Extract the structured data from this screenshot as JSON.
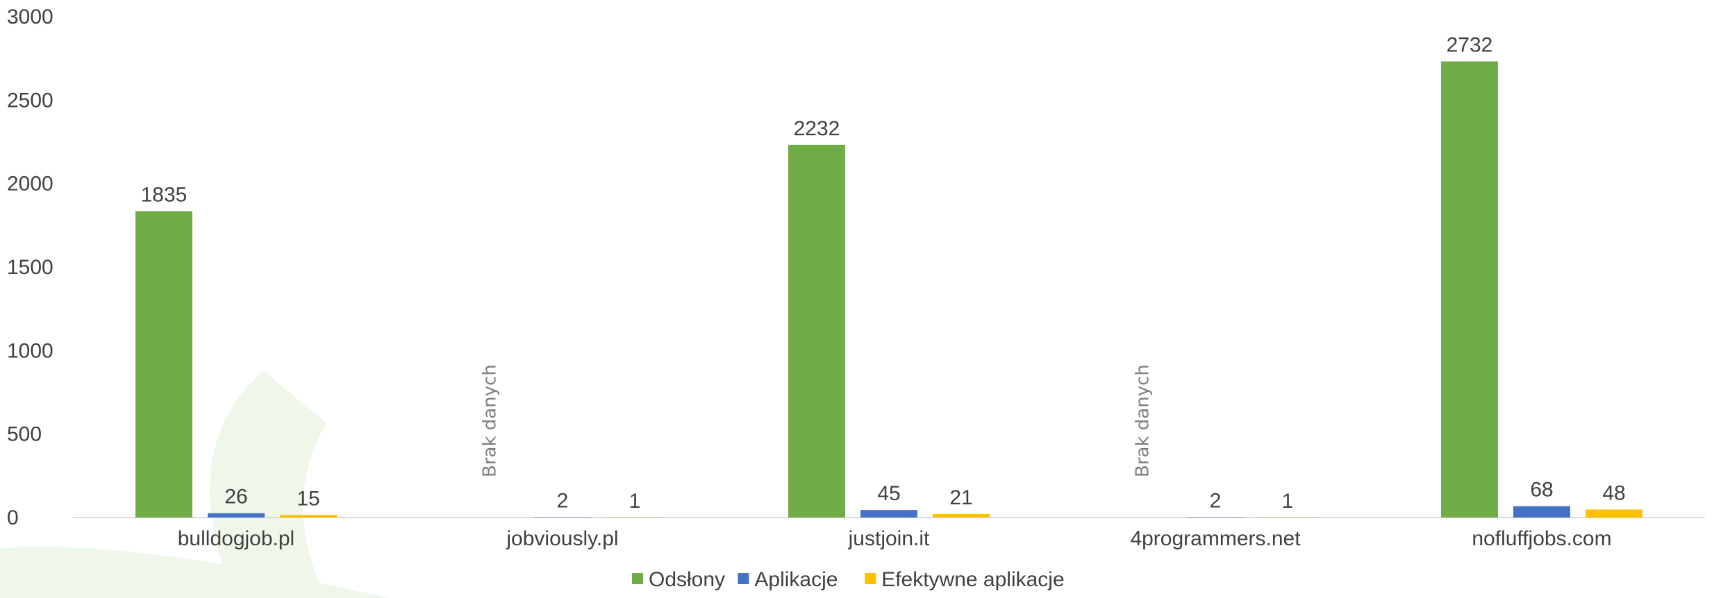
{
  "chart_data": {
    "type": "bar",
    "categories": [
      "bulldogjob.pl",
      "jobviously.pl",
      "justjoin.it",
      "4programmers.net",
      "nofluffjobs.com"
    ],
    "series": [
      {
        "name": "Odsłony",
        "values": [
          1835,
          null,
          2232,
          null,
          2732
        ],
        "color": "#70ad47"
      },
      {
        "name": "Aplikacje",
        "values": [
          26,
          2,
          45,
          2,
          68
        ],
        "color": "#4472c4"
      },
      {
        "name": "Efektywne aplikacje",
        "values": [
          15,
          1,
          21,
          1,
          48
        ],
        "color": "#ffc000"
      }
    ],
    "missing_label": "Brak danych",
    "ylim": [
      0,
      3000
    ],
    "yticks": [
      0,
      500,
      1000,
      1500,
      2000,
      2500,
      3000
    ],
    "grid": false,
    "legend_position": "bottom",
    "title": "",
    "xlabel": "",
    "ylabel": ""
  }
}
